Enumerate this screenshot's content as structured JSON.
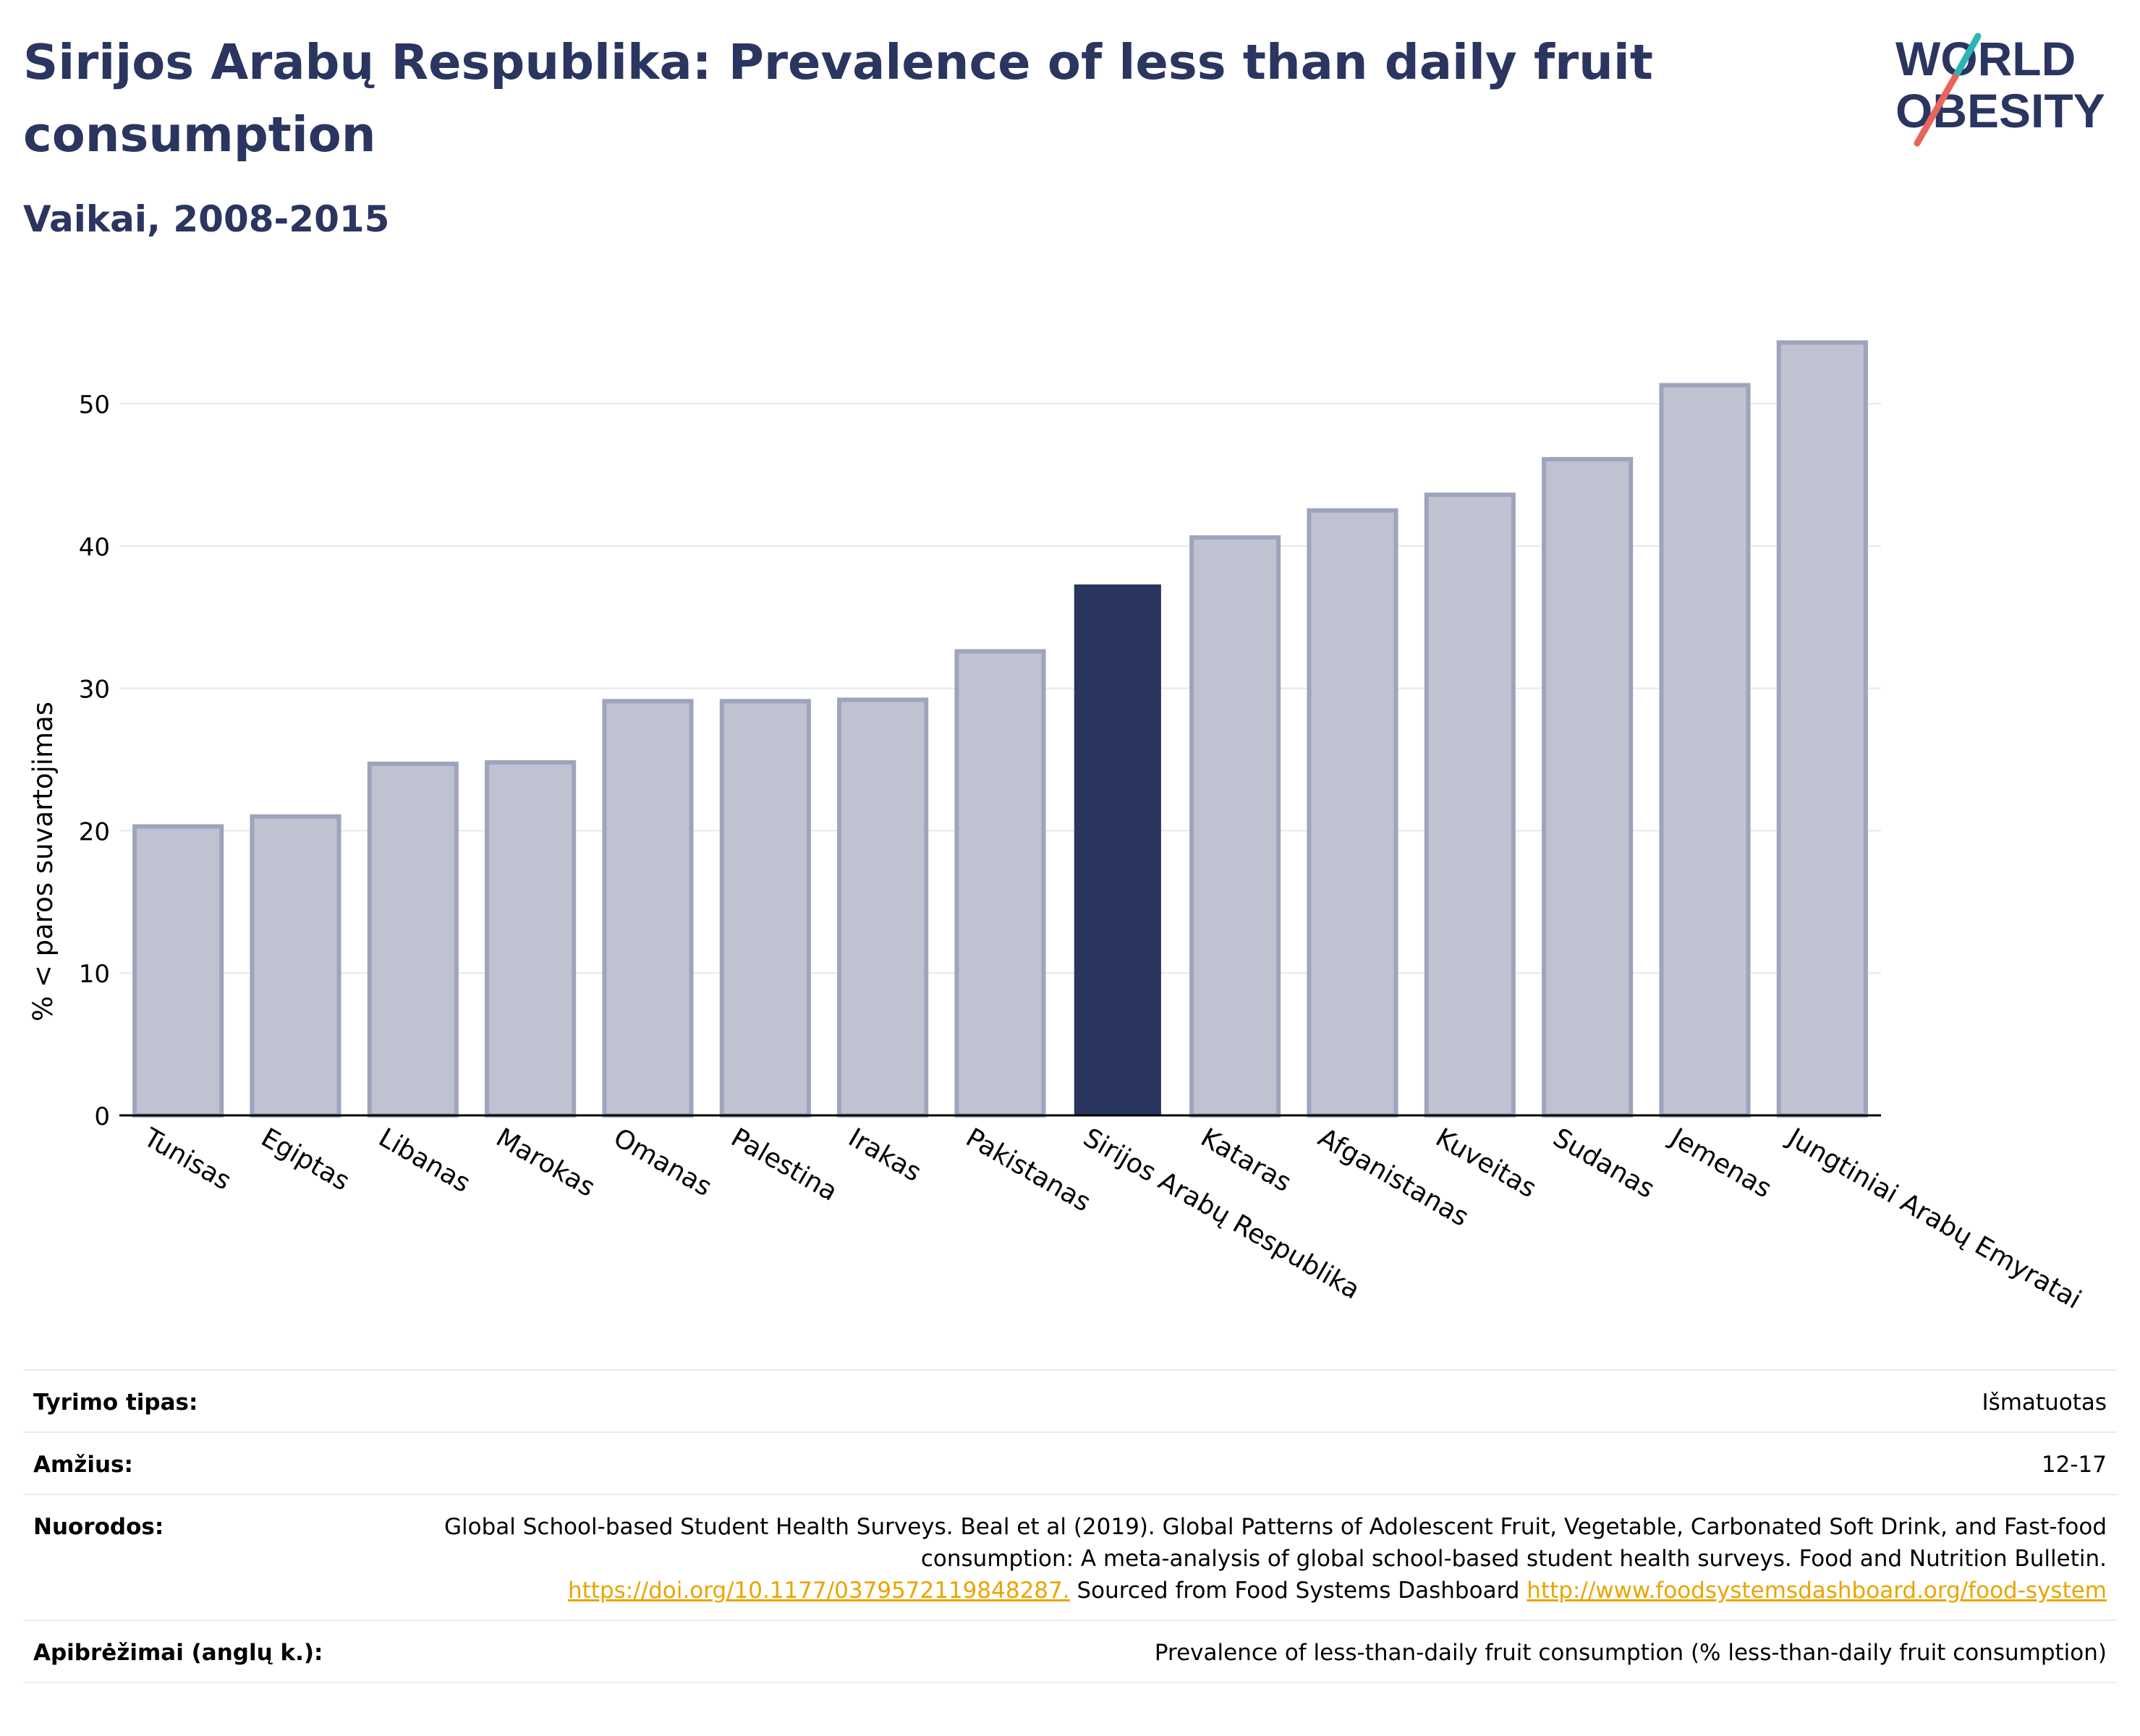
{
  "title": "Sirijos Arabų Respublika: Prevalence of less than daily fruit consumption",
  "subtitle": "Vaikai, 2008-2015",
  "logo": {
    "line1": "WORLD",
    "line2": "OBESITY",
    "colors": [
      "#2a3560",
      "#e8655a",
      "#2bb5b5"
    ]
  },
  "colors": {
    "highlight": "#2a3560",
    "bar_fill": "#bfc2d0",
    "bar_stroke": "#9ea4bd",
    "axis": "#000000",
    "grid": "#e6e8ef",
    "link": "#e8a500"
  },
  "chart_data": {
    "type": "bar",
    "categories": [
      "Tunisas",
      "Egiptas",
      "Libanas",
      "Marokas",
      "Omanas",
      "Palestina",
      "Irakas",
      "Pakistanas",
      "Sirijos Arabų Respublika",
      "Kataras",
      "Afganistanas",
      "Kuveitas",
      "Sudanas",
      "Jemenas",
      "Jungtiniai Arabų Emyratai"
    ],
    "values": [
      20.3,
      21.0,
      24.7,
      24.8,
      29.1,
      29.1,
      29.2,
      32.6,
      37.3,
      40.6,
      42.5,
      43.6,
      46.1,
      51.3,
      54.3
    ],
    "highlight_index": 8,
    "ylabel": "% < paros suvartojimas",
    "xlabel": "",
    "ylim": [
      0,
      56
    ],
    "yticks": [
      0,
      10,
      20,
      30,
      40,
      50
    ],
    "grid": true,
    "legend": "none"
  },
  "meta": {
    "rows": [
      {
        "label": "Tyrimo tipas:",
        "value": "Išmatuotas"
      },
      {
        "label": "Amžius:",
        "value": "12-17"
      },
      {
        "label": "Nuorodos:",
        "value": "Global School-based Student Health Surveys. Beal et al (2019). Global Patterns of Adolescent Fruit, Vegetable, Carbonated Soft Drink, and Fast-food consumption: A meta-analysis of global school-based student health surveys. Food and Nutrition Bulletin.",
        "link1": "https://doi.org/10.1177/0379572119848287.",
        "middle": " Sourced from Food Systems Dashboard ",
        "link2": "http://www.foodsystemsdashboard.org/food-system"
      },
      {
        "label": "Apibrėžimai (anglų k.):",
        "value": "Prevalence of less-than-daily fruit consumption (% less-than-daily fruit consumption)"
      }
    ]
  }
}
